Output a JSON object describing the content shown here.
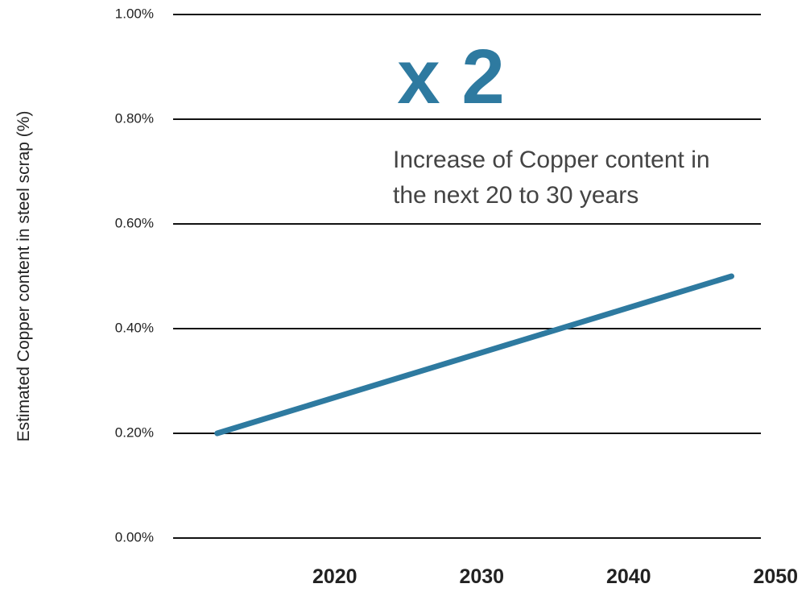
{
  "chart_data": {
    "type": "line",
    "y_label": "Estimated Copper content in steel scrap (%)",
    "annotations": [
      "x 2",
      "Increase of Copper content in",
      "the next 20 to 30 years"
    ],
    "x": [
      2012,
      2047
    ],
    "series": [
      {
        "color": "#2e7aa0",
        "values": [
          0.2,
          0.5
        ]
      }
    ],
    "xlim": [
      2009,
      2049
    ],
    "xticks": [
      2020,
      2030,
      2040,
      2050
    ],
    "ylim": [
      0,
      1
    ],
    "yticks": [
      {
        "value": 0,
        "label": "0.00%"
      },
      {
        "value": 0.2,
        "label": "0.20%"
      },
      {
        "value": 0.4,
        "label": "0.40%"
      },
      {
        "value": 0.6,
        "label": "0.60%"
      },
      {
        "value": 0.8,
        "label": "0.80%"
      },
      {
        "value": 1,
        "label": "1.00%"
      }
    ],
    "grid": true
  }
}
